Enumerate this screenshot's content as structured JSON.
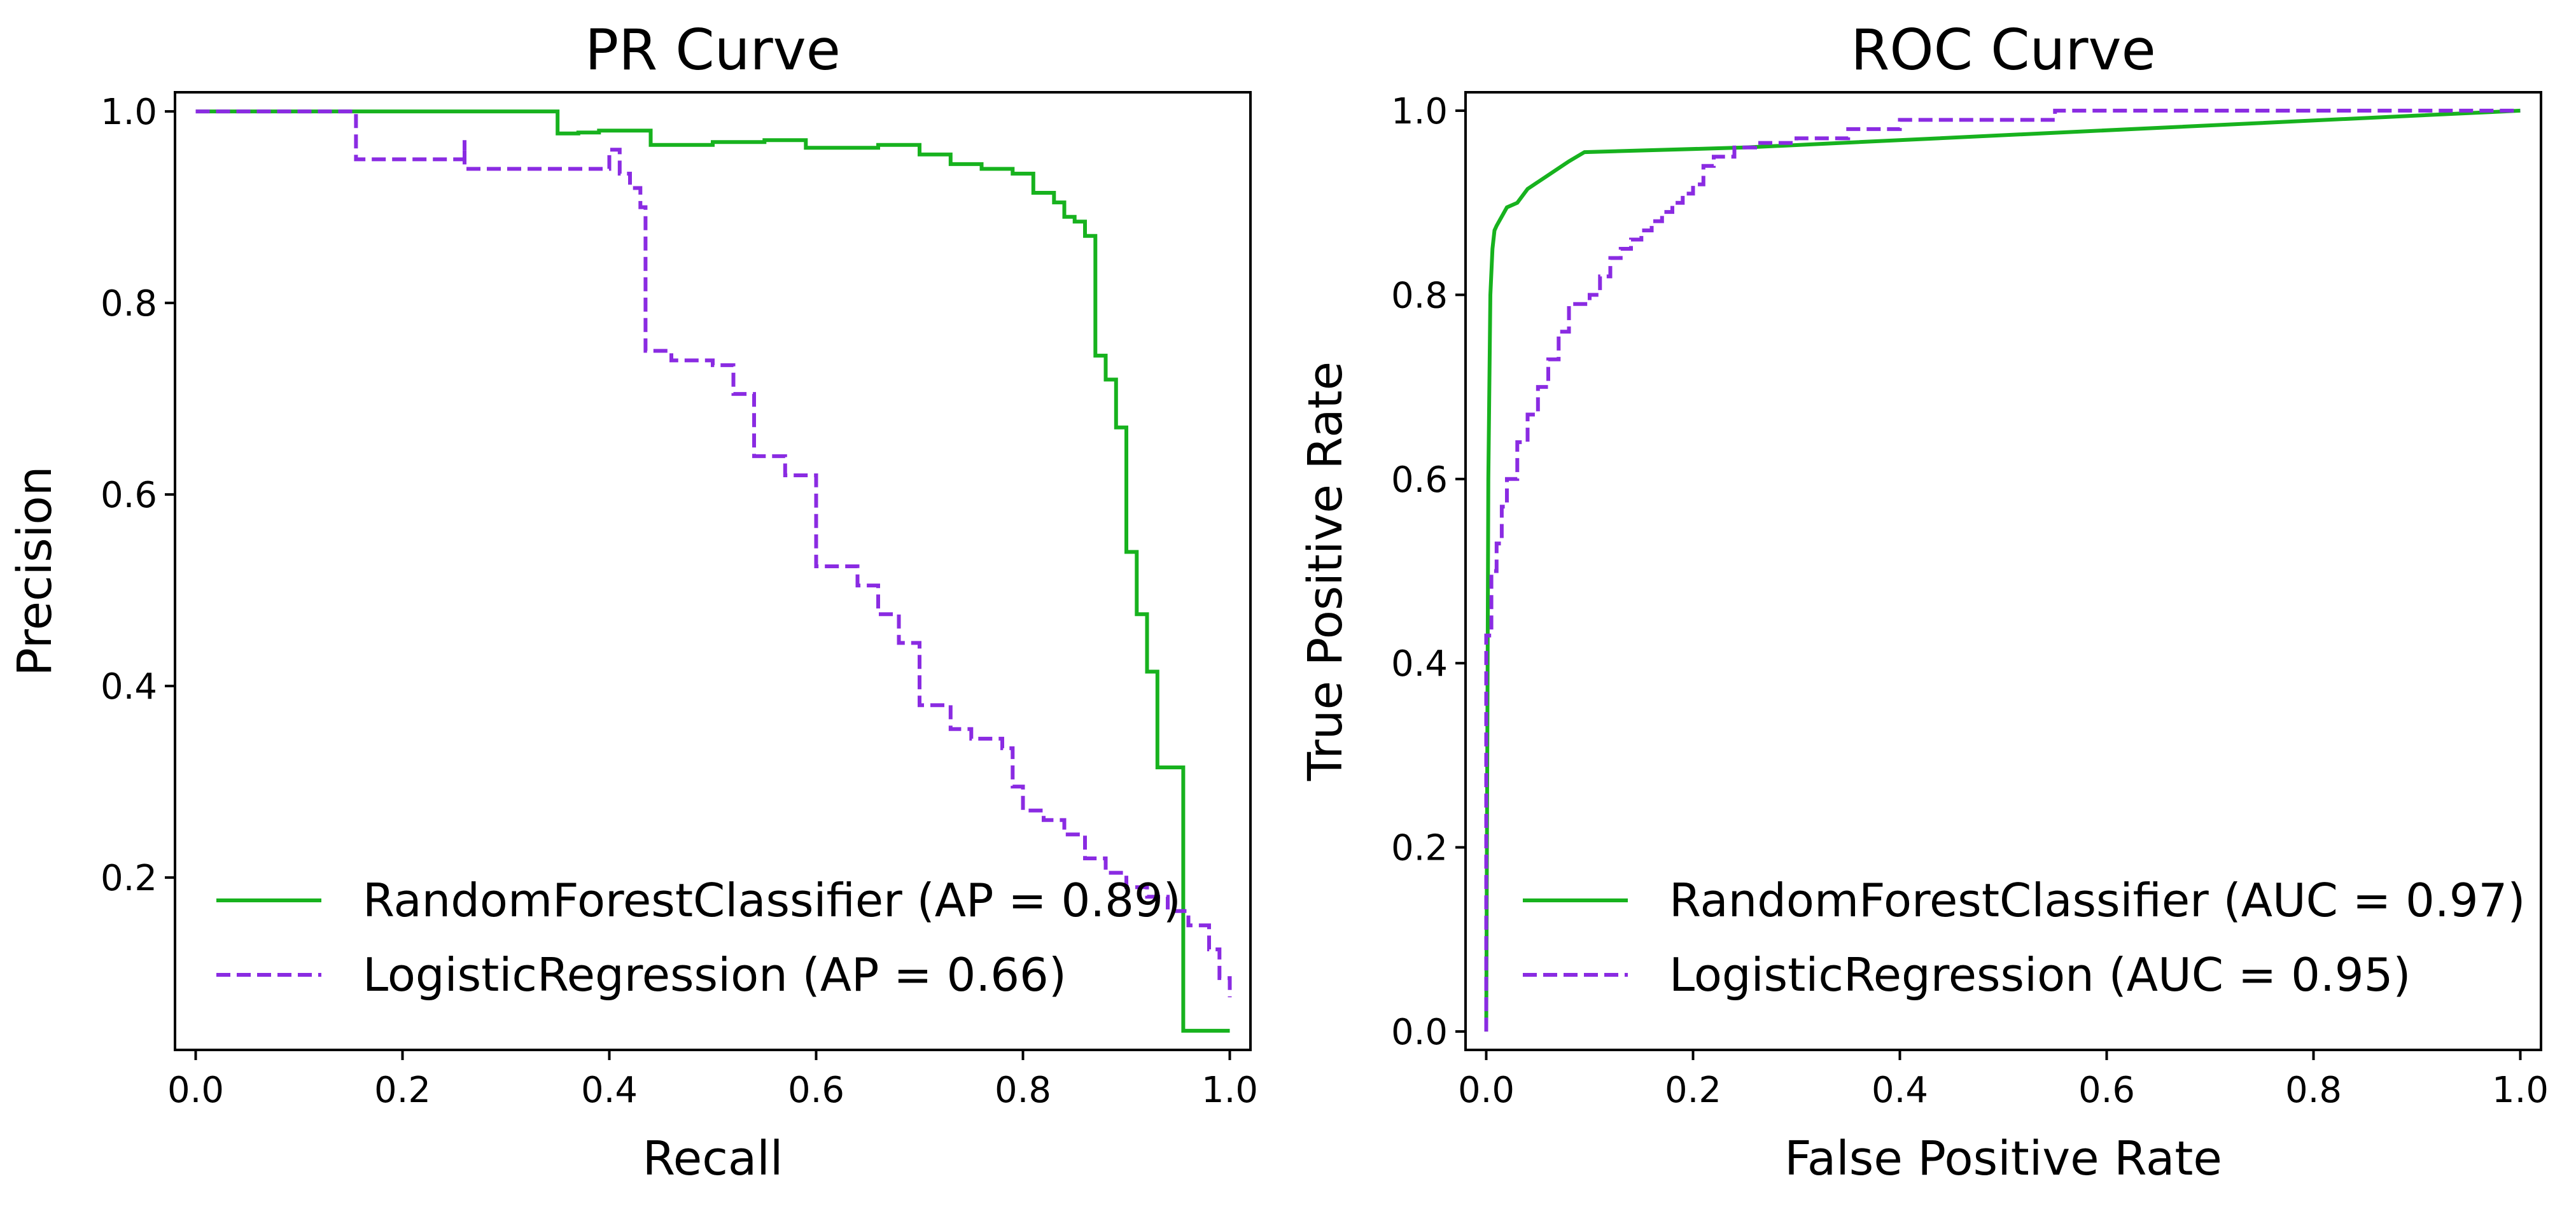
{
  "colors": {
    "random_forest": "#17b21e",
    "logistic_regression": "#8a2be2"
  },
  "chart_data": [
    {
      "type": "line",
      "title": "PR Curve",
      "xlabel": "Recall",
      "ylabel": "Precision",
      "xlim": [
        -0.02,
        1.02
      ],
      "ylim": [
        0.02,
        1.02
      ],
      "xticks": [
        0.0,
        0.2,
        0.4,
        0.6,
        0.8,
        1.0
      ],
      "xtick_labels": [
        "0.0",
        "0.2",
        "0.4",
        "0.6",
        "0.8",
        "1.0"
      ],
      "yticks": [
        0.2,
        0.4,
        0.6,
        0.8,
        1.0
      ],
      "ytick_labels": [
        "0.2",
        "0.4",
        "0.6",
        "0.8",
        "1.0"
      ],
      "grid": false,
      "legend_position": "lower-left",
      "series": [
        {
          "name": "RandomForestClassifier (AP = 0.89)",
          "color": "#17b21e",
          "style": "solid",
          "step": true,
          "x": [
            0.0,
            0.35,
            0.35,
            0.37,
            0.39,
            0.41,
            0.42,
            0.44,
            0.46,
            0.5,
            0.55,
            0.59,
            0.62,
            0.66,
            0.7,
            0.73,
            0.76,
            0.79,
            0.81,
            0.83,
            0.84,
            0.85,
            0.86,
            0.87,
            0.88,
            0.89,
            0.9,
            0.91,
            0.92,
            0.93,
            0.955,
            1.0
          ],
          "y": [
            1.0,
            1.0,
            0.977,
            0.978,
            0.98,
            0.98,
            0.98,
            0.965,
            0.965,
            0.968,
            0.97,
            0.962,
            0.962,
            0.965,
            0.955,
            0.945,
            0.94,
            0.935,
            0.915,
            0.905,
            0.89,
            0.885,
            0.87,
            0.745,
            0.72,
            0.67,
            0.54,
            0.475,
            0.415,
            0.315,
            0.04,
            0.04
          ]
        },
        {
          "name": "LogisticRegression (AP = 0.66)",
          "color": "#8a2be2",
          "style": "dashed",
          "step": true,
          "x": [
            0.0,
            0.155,
            0.155,
            0.26,
            0.26,
            0.4,
            0.41,
            0.42,
            0.43,
            0.435,
            0.435,
            0.46,
            0.5,
            0.52,
            0.54,
            0.57,
            0.6,
            0.64,
            0.66,
            0.68,
            0.7,
            0.73,
            0.75,
            0.78,
            0.79,
            0.8,
            0.82,
            0.84,
            0.86,
            0.88,
            0.9,
            0.92,
            0.94,
            0.96,
            0.98,
            0.99,
            1.0
          ],
          "y": [
            1.0,
            1.0,
            0.95,
            0.97,
            0.94,
            0.96,
            0.935,
            0.92,
            0.9,
            0.89,
            0.75,
            0.74,
            0.735,
            0.705,
            0.64,
            0.62,
            0.525,
            0.505,
            0.475,
            0.445,
            0.38,
            0.355,
            0.345,
            0.335,
            0.295,
            0.27,
            0.26,
            0.245,
            0.22,
            0.205,
            0.19,
            0.18,
            0.165,
            0.15,
            0.125,
            0.095,
            0.075
          ]
        }
      ]
    },
    {
      "type": "line",
      "title": "ROC Curve",
      "xlabel": "False Positive Rate",
      "ylabel": "True Positive Rate",
      "xlim": [
        -0.02,
        1.02
      ],
      "ylim": [
        -0.02,
        1.02
      ],
      "xticks": [
        0.0,
        0.2,
        0.4,
        0.6,
        0.8,
        1.0
      ],
      "xtick_labels": [
        "0.0",
        "0.2",
        "0.4",
        "0.6",
        "0.8",
        "1.0"
      ],
      "yticks": [
        0.0,
        0.2,
        0.4,
        0.6,
        0.8,
        1.0
      ],
      "ytick_labels": [
        "0.0",
        "0.2",
        "0.4",
        "0.6",
        "0.8",
        "1.0"
      ],
      "grid": false,
      "legend_position": "lower-right",
      "series": [
        {
          "name": "RandomForestClassifier (AUC = 0.97)",
          "color": "#17b21e",
          "style": "solid",
          "step": false,
          "x": [
            0.0,
            0.002,
            0.004,
            0.006,
            0.008,
            0.01,
            0.015,
            0.02,
            0.03,
            0.04,
            0.06,
            0.08,
            0.095,
            0.25,
            1.0
          ],
          "y": [
            0.0,
            0.6,
            0.8,
            0.85,
            0.87,
            0.875,
            0.885,
            0.895,
            0.9,
            0.915,
            0.93,
            0.945,
            0.955,
            0.96,
            1.0
          ]
        },
        {
          "name": "LogisticRegression (AUC = 0.95)",
          "color": "#8a2be2",
          "style": "dashed",
          "step": true,
          "x": [
            0.0,
            0.0,
            0.005,
            0.005,
            0.01,
            0.015,
            0.02,
            0.03,
            0.04,
            0.05,
            0.06,
            0.07,
            0.08,
            0.1,
            0.11,
            0.12,
            0.13,
            0.14,
            0.15,
            0.16,
            0.17,
            0.18,
            0.19,
            0.2,
            0.21,
            0.22,
            0.24,
            0.26,
            0.3,
            0.35,
            0.4,
            0.55,
            0.6,
            1.0
          ],
          "y": [
            0.0,
            0.43,
            0.44,
            0.5,
            0.53,
            0.57,
            0.6,
            0.64,
            0.67,
            0.7,
            0.73,
            0.76,
            0.79,
            0.8,
            0.82,
            0.84,
            0.85,
            0.86,
            0.87,
            0.88,
            0.89,
            0.9,
            0.91,
            0.92,
            0.94,
            0.95,
            0.96,
            0.965,
            0.97,
            0.98,
            0.99,
            1.0,
            1.0,
            1.0
          ]
        }
      ]
    }
  ]
}
